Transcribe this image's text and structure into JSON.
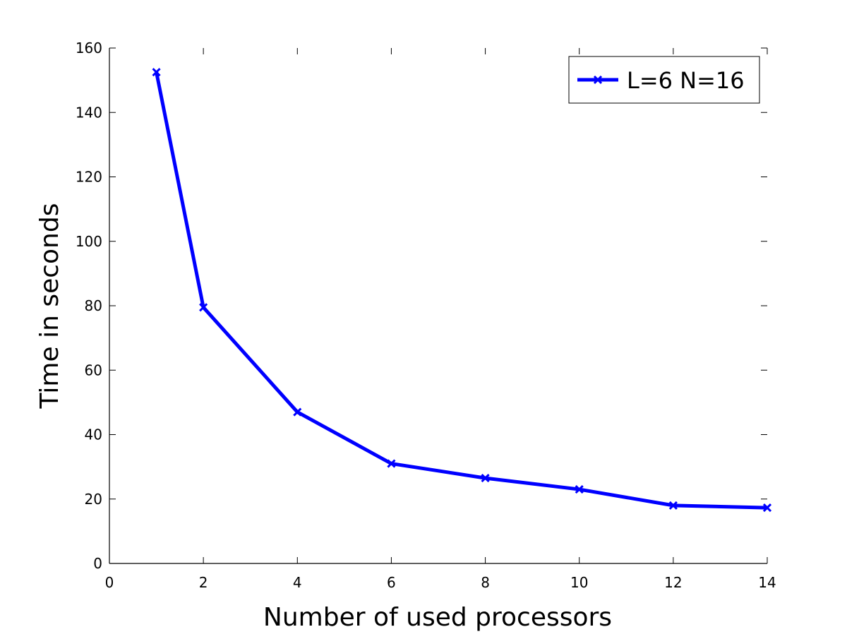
{
  "chart_data": {
    "type": "line",
    "title": "",
    "xlabel": "Number of used processors",
    "ylabel": "Time in seconds",
    "xlim": [
      0,
      14
    ],
    "ylim": [
      0,
      160
    ],
    "xticks": [
      0,
      2,
      4,
      6,
      8,
      10,
      12,
      14
    ],
    "yticks": [
      0,
      20,
      40,
      60,
      80,
      100,
      120,
      140,
      160
    ],
    "grid": false,
    "legend_position": "top-right",
    "series": [
      {
        "name": "L=6 N=16",
        "color": "#0000ff",
        "marker": "x",
        "x": [
          1,
          2,
          4,
          6,
          8,
          10,
          12,
          14
        ],
        "y": [
          152.5,
          79.5,
          47,
          31,
          26.5,
          23,
          18,
          17.3
        ]
      }
    ]
  }
}
